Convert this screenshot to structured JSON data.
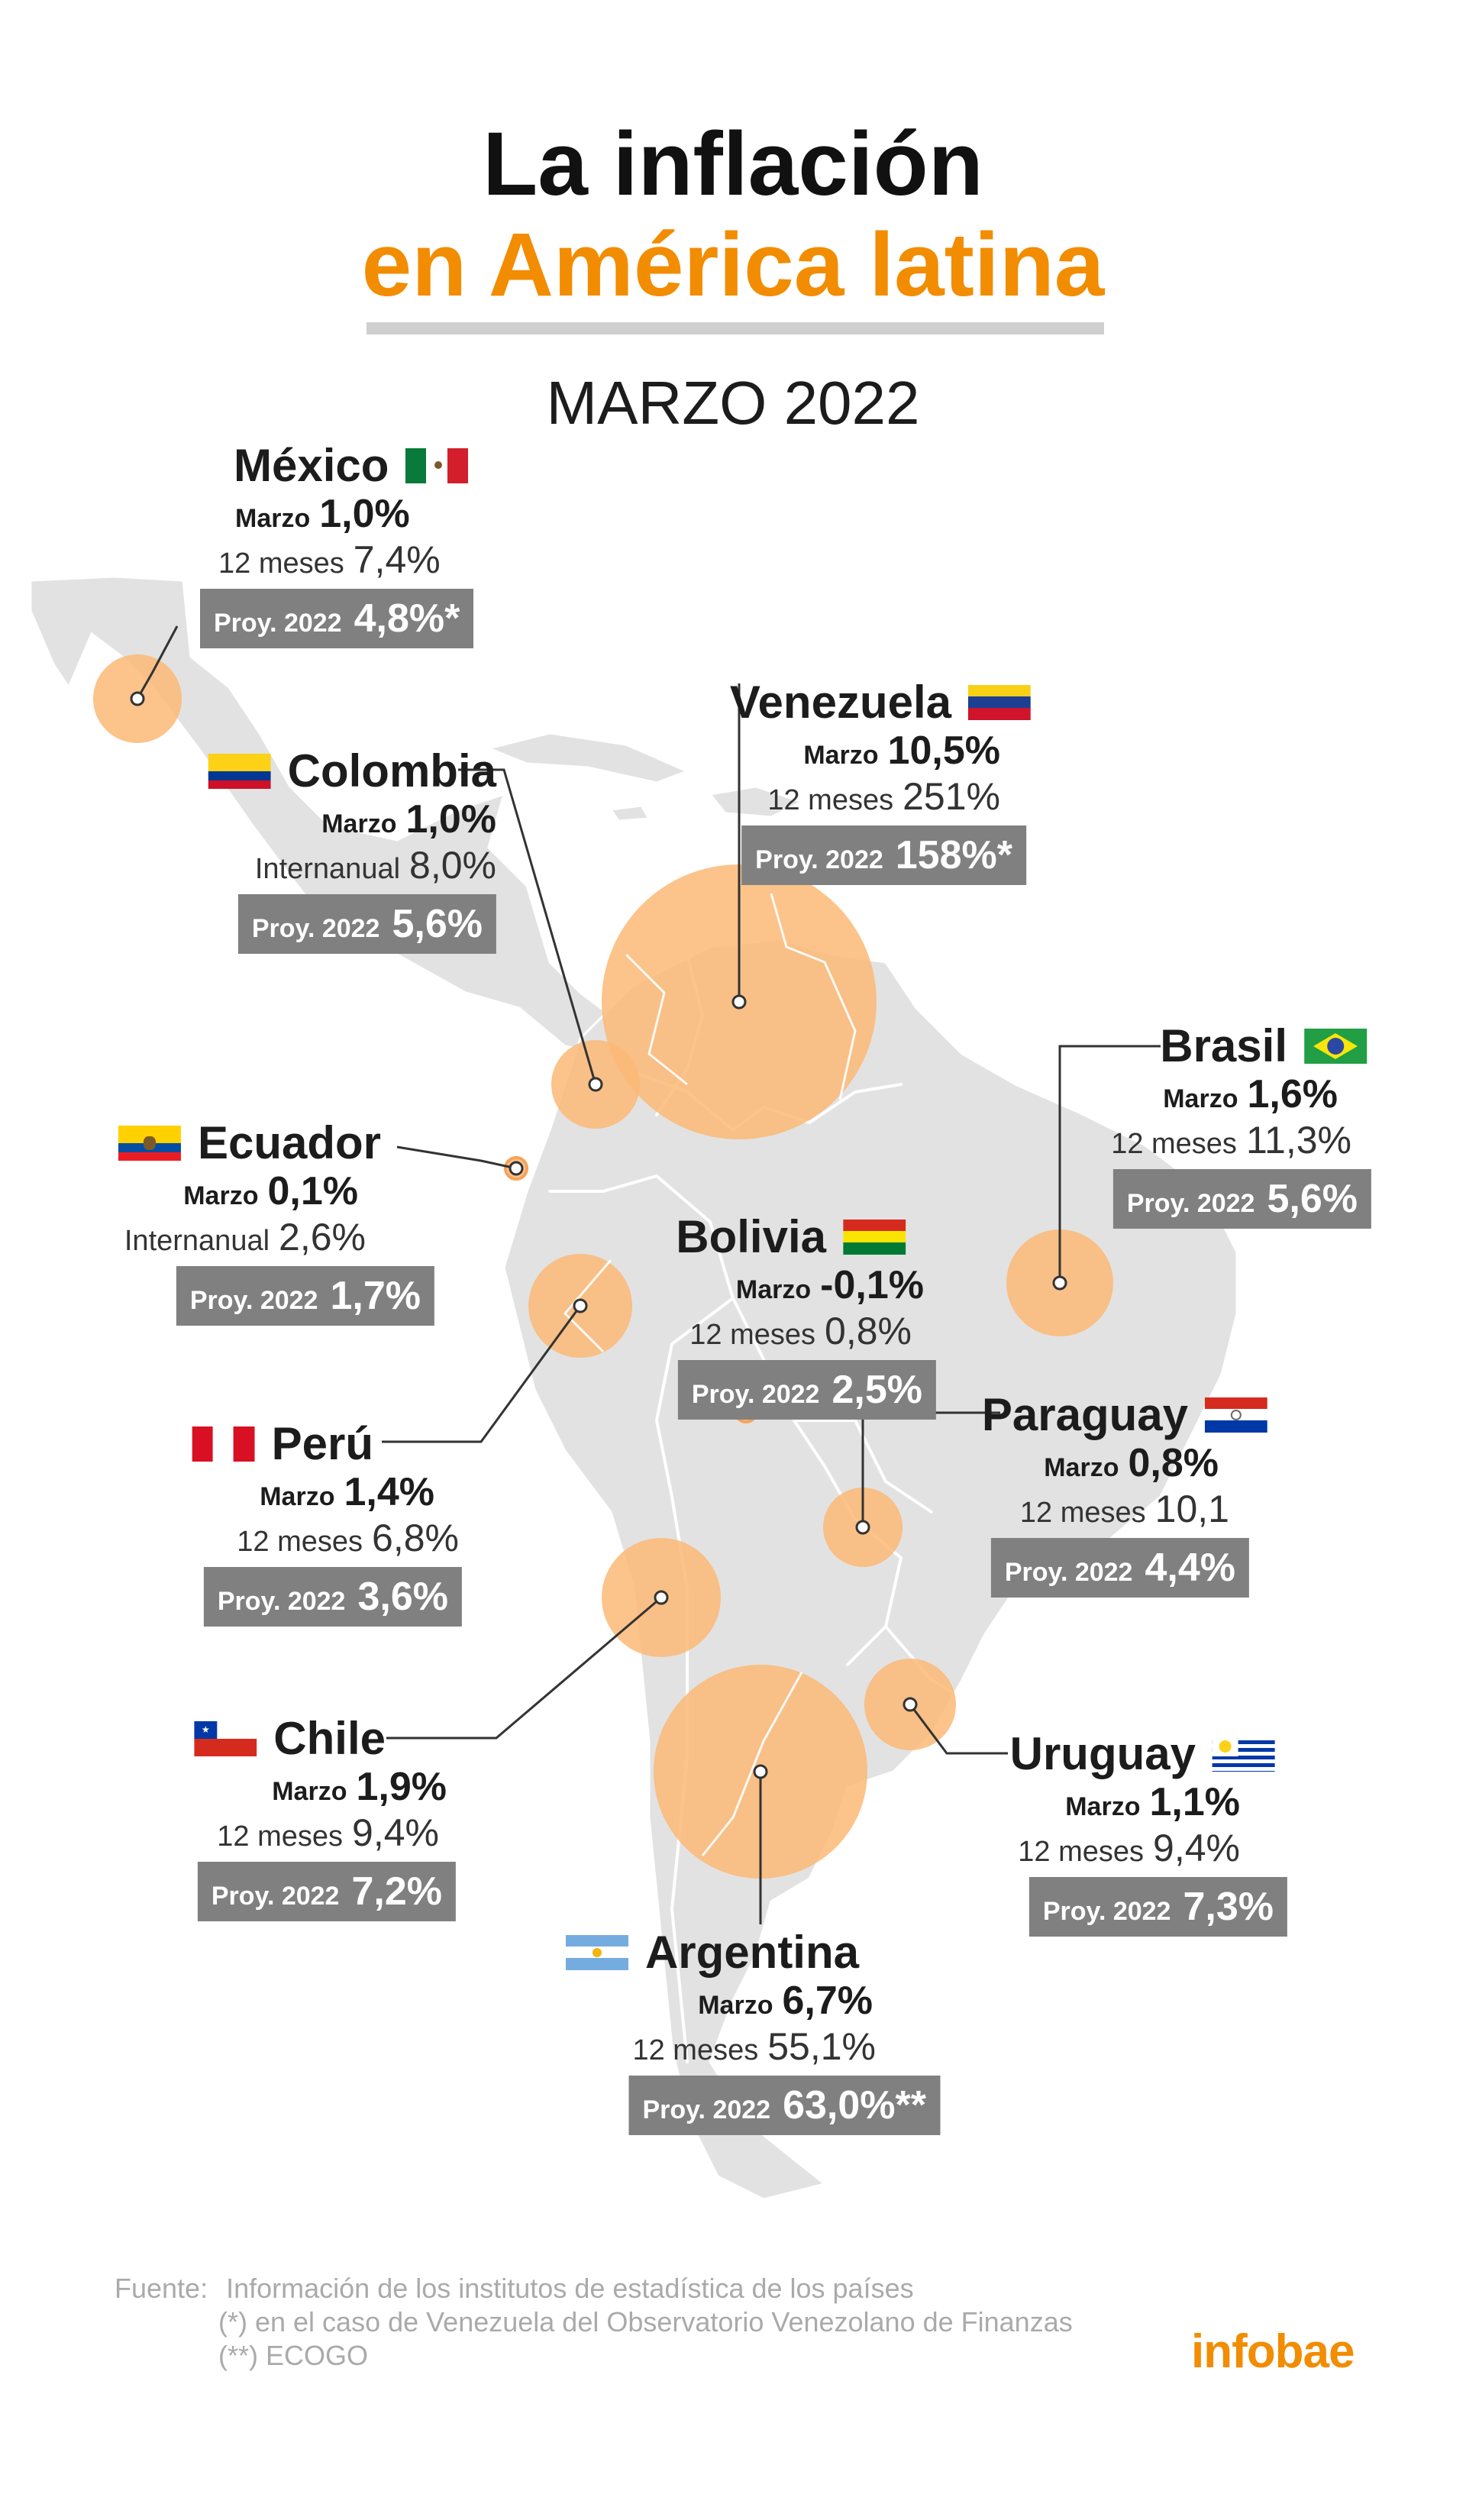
{
  "title": {
    "line1": "La inflación",
    "line2": "en América latina"
  },
  "subtitle": "MARZO 2022",
  "colors": {
    "accent": "#f28c00",
    "bubble": "#fbb875",
    "land": "#e2e2e2",
    "box": "#808080"
  },
  "countries": [
    {
      "name": "México",
      "flag": "mexico-flag",
      "marzo_label": "Marzo",
      "marzo": "1,0%",
      "annual_label": "12 meses",
      "annual": "7,4%",
      "proy_label": "Proy. 2022",
      "proy": "4,8%*",
      "marzo_value": 1.0,
      "annual_value": 7.4,
      "proy_value": 4.8
    },
    {
      "name": "Colombia",
      "flag": "colombia-flag",
      "marzo_label": "Marzo",
      "marzo": "1,0%",
      "annual_label": "Internanual",
      "annual": "8,0%",
      "proy_label": "Proy. 2022",
      "proy": "5,6%",
      "marzo_value": 1.0,
      "annual_value": 8.0,
      "proy_value": 5.6
    },
    {
      "name": "Venezuela",
      "flag": "venezuela-flag",
      "marzo_label": "Marzo",
      "marzo": "10,5%",
      "annual_label": "12 meses",
      "annual": "251%",
      "proy_label": "Proy. 2022",
      "proy": "158%*",
      "marzo_value": 10.5,
      "annual_value": 251,
      "proy_value": 158
    },
    {
      "name": "Brasil",
      "flag": "brazil-flag",
      "marzo_label": "Marzo",
      "marzo": "1,6%",
      "annual_label": "12 meses",
      "annual": "11,3%",
      "proy_label": "Proy. 2022",
      "proy": "5,6%",
      "marzo_value": 1.6,
      "annual_value": 11.3,
      "proy_value": 5.6
    },
    {
      "name": "Ecuador",
      "flag": "ecuador-flag",
      "marzo_label": "Marzo",
      "marzo": "0,1%",
      "annual_label": "Internanual",
      "annual": "2,6%",
      "proy_label": "Proy. 2022",
      "proy": "1,7%",
      "marzo_value": 0.1,
      "annual_value": 2.6,
      "proy_value": 1.7
    },
    {
      "name": "Bolivia",
      "flag": "bolivia-flag",
      "marzo_label": "Marzo",
      "marzo": "-0,1%",
      "annual_label": "12 meses",
      "annual": "0,8%",
      "proy_label": "Proy. 2022",
      "proy": "2,5%",
      "marzo_value": -0.1,
      "annual_value": 0.8,
      "proy_value": 2.5
    },
    {
      "name": "Perú",
      "flag": "peru-flag",
      "marzo_label": "Marzo",
      "marzo": "1,4%",
      "annual_label": "12 meses",
      "annual": "6,8%",
      "proy_label": "Proy. 2022",
      "proy": "3,6%",
      "marzo_value": 1.4,
      "annual_value": 6.8,
      "proy_value": 3.6
    },
    {
      "name": "Paraguay",
      "flag": "paraguay-flag",
      "marzo_label": "Marzo",
      "marzo": "0,8%",
      "annual_label": "12 meses",
      "annual": "10,1",
      "proy_label": "Proy. 2022",
      "proy": "4,4%",
      "marzo_value": 0.8,
      "annual_value": 10.1,
      "proy_value": 4.4
    },
    {
      "name": "Chile",
      "flag": "chile-flag",
      "marzo_label": "Marzo",
      "marzo": "1,9%",
      "annual_label": "12 meses",
      "annual": "9,4%",
      "proy_label": "Proy. 2022",
      "proy": "7,2%",
      "marzo_value": 1.9,
      "annual_value": 9.4,
      "proy_value": 7.2
    },
    {
      "name": "Uruguay",
      "flag": "uruguay-flag",
      "marzo_label": "Marzo",
      "marzo": "1,1%",
      "annual_label": "12 meses",
      "annual": "9,4%",
      "proy_label": "Proy. 2022",
      "proy": "7,3%",
      "marzo_value": 1.1,
      "annual_value": 9.4,
      "proy_value": 7.3
    },
    {
      "name": "Argentina",
      "flag": "argentina-flag",
      "marzo_label": "Marzo",
      "marzo": "6,7%",
      "annual_label": "12 meses",
      "annual": "55,1%",
      "proy_label": "Proy. 2022",
      "proy": "63,0%**",
      "marzo_value": 6.7,
      "annual_value": 55.1,
      "proy_value": 63.0
    }
  ],
  "source": {
    "label": "Fuente:",
    "line1": "Información de los institutos de estadística de los países",
    "line2": "(*) en el caso de Venezuela del Observatorio Venezolano de Finanzas",
    "line3": "(**) ECOGO"
  },
  "brand": "infobae"
}
